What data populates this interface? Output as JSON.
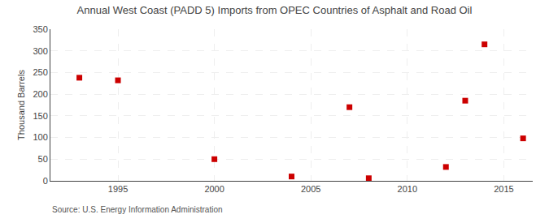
{
  "chart_data": {
    "type": "scatter",
    "title": "Annual West Coast (PADD 5) Imports from OPEC Countries of Asphalt and Road Oil",
    "ylabel": "Thousand Barrels",
    "annotations": [
      "Source: U.S. Energy Information Administration"
    ],
    "x": [
      1993,
      1995,
      2000,
      2004,
      2007,
      2008,
      2012,
      2013,
      2014,
      2016
    ],
    "values": [
      238,
      232,
      50,
      10,
      170,
      6,
      32,
      185,
      315,
      98
    ],
    "color": "#cc0000",
    "marker": "square",
    "xlim": [
      1991.5,
      2016.5
    ],
    "xticks": [
      1995,
      2000,
      2005,
      2010,
      2015
    ],
    "ylim": [
      0,
      350
    ],
    "yticks": [
      0,
      50,
      100,
      150,
      200,
      250,
      300,
      350
    ],
    "grid": true
  }
}
